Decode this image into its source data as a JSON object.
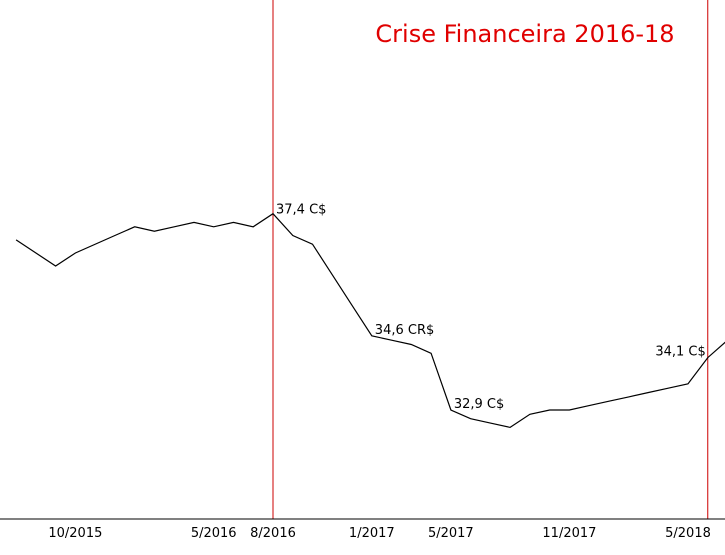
{
  "chart_data": {
    "type": "line",
    "title": "Crise Financeira 2016-18",
    "xlabel": "",
    "ylabel": "",
    "grid": false,
    "x_ticks": [
      "10/2015",
      "5/2016",
      "8/2016",
      "1/2017",
      "5/2017",
      "11/2017",
      "5/2018"
    ],
    "markers": [
      "8/2016",
      "6/2018"
    ],
    "ylim": [
      30.4,
      42.3
    ],
    "series": [
      {
        "x": [
          "7/2015",
          "9/2015",
          "10/2015",
          "12/2015",
          "1/2016",
          "2/2016",
          "3/2016",
          "4/2016",
          "5/2016",
          "6/2016",
          "7/2016",
          "8/2016",
          "9/2016",
          "10/2016",
          "11/2016",
          "12/2016",
          "1/2017",
          "2/2017",
          "3/2017",
          "4/2017",
          "5/2017",
          "6/2017",
          "7/2017",
          "8/2017",
          "9/2017",
          "10/2017",
          "11/2017",
          "12/2017",
          "1/2018",
          "2/2018",
          "3/2018",
          "4/2018",
          "5/2018",
          "6/2018",
          "7/2018"
        ],
        "values": [
          36.8,
          36.2,
          36.5,
          36.9,
          37.1,
          37.0,
          37.1,
          37.2,
          37.1,
          37.2,
          37.1,
          37.4,
          36.9,
          36.7,
          36.0,
          35.3,
          34.6,
          34.5,
          34.4,
          34.2,
          32.9,
          32.7,
          32.6,
          32.5,
          32.8,
          32.9,
          32.9,
          33.0,
          33.1,
          33.2,
          33.3,
          33.4,
          33.5,
          34.1,
          34.5
        ]
      }
    ],
    "data_labels": [
      {
        "x": "8/2016",
        "text": "37,4 C$"
      },
      {
        "x": "1/2017",
        "text": "34,6 CR$"
      },
      {
        "x": "5/2017",
        "text": "32,9 C$"
      },
      {
        "x": "6/2018",
        "text": "34,1 C$"
      }
    ],
    "colors": {
      "line": "#000000",
      "marker": "#cc0000",
      "title": "#e00000",
      "axis": "#000000"
    }
  }
}
